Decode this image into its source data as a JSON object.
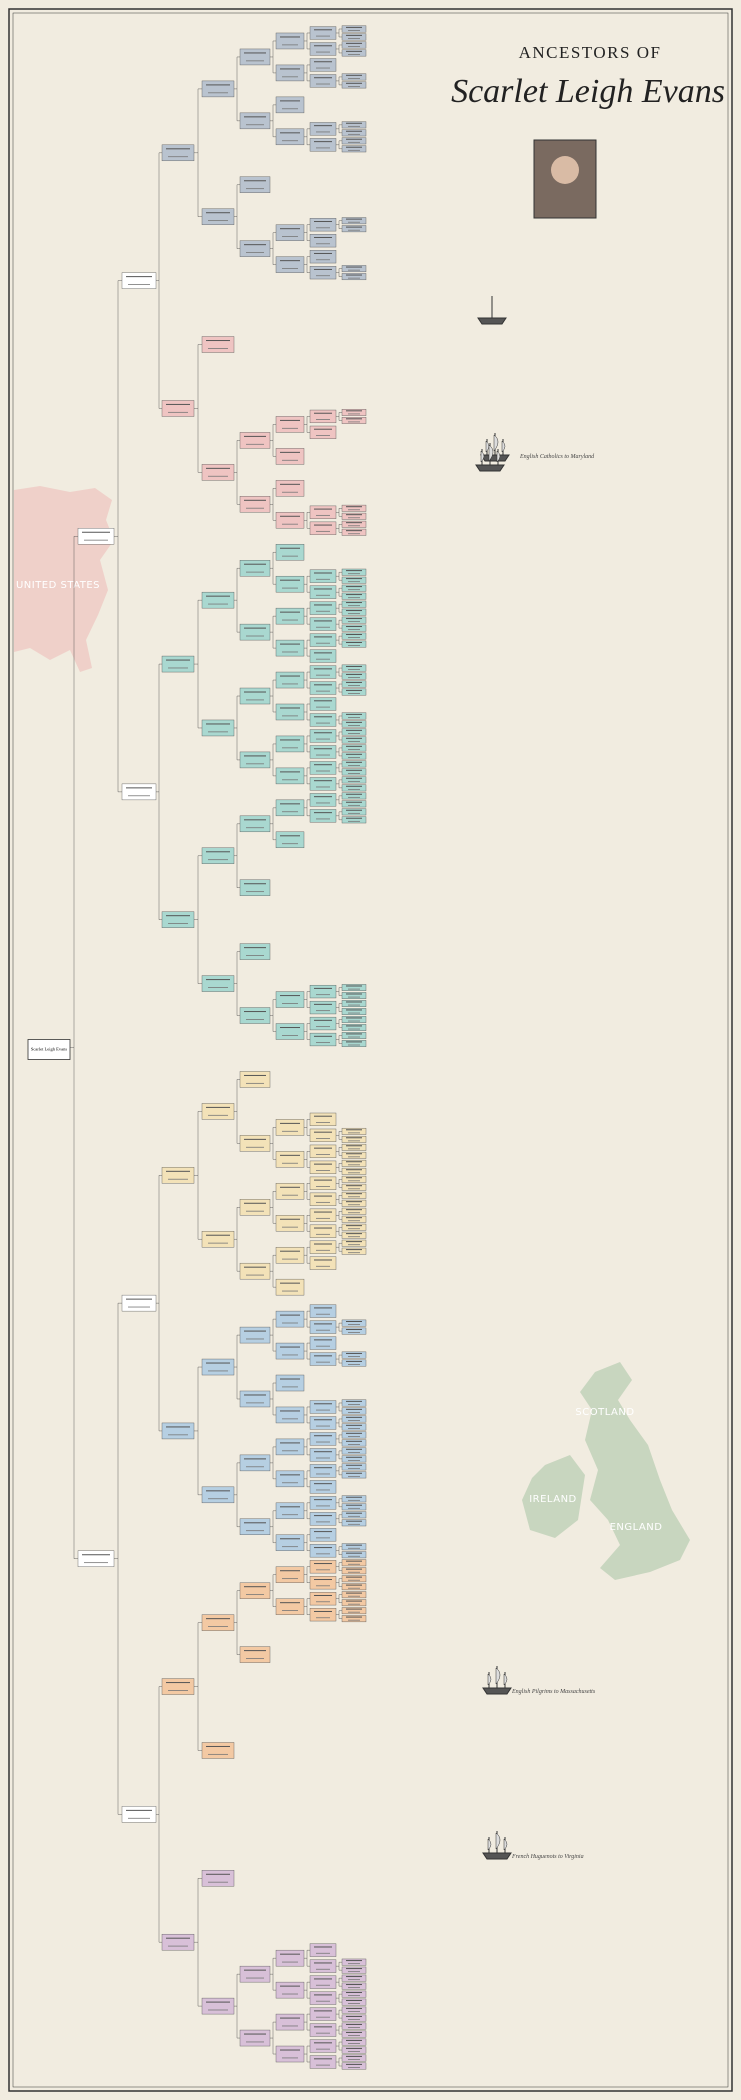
{
  "header": {
    "title_small": "ANCESTORS OF",
    "title_name": "Scarlet Leigh Evans"
  },
  "root": {
    "name": "Scarlet Leigh Evans"
  },
  "map_labels": [
    "UNITED STATES",
    "SCOTLAND",
    "IRELAND",
    "ENGLAND"
  ],
  "migration_captions": [
    "English Catholics to Maryland",
    "English Pilgrims to Massachusetts",
    "French Huguenots to Virginia"
  ]
}
